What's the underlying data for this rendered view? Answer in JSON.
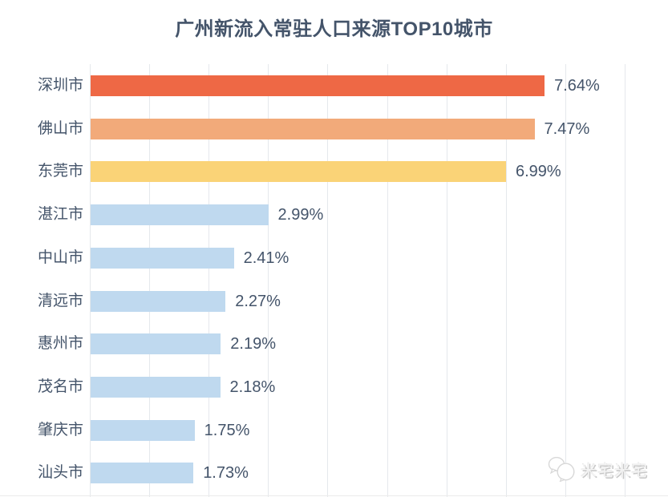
{
  "chart_data": {
    "type": "bar",
    "orientation": "horizontal",
    "title": "广州新流入常驻人口来源TOP10城市",
    "categories": [
      "深圳市",
      "佛山市",
      "东莞市",
      "湛江市",
      "中山市",
      "清远市",
      "惠州市",
      "茂名市",
      "肇庆市",
      "汕头市"
    ],
    "values": [
      7.64,
      7.47,
      6.99,
      2.99,
      2.41,
      2.27,
      2.19,
      2.18,
      1.75,
      1.73
    ],
    "value_labels": [
      "7.64%",
      "7.47%",
      "6.99%",
      "2.99%",
      "2.41%",
      "2.27%",
      "2.19%",
      "2.18%",
      "1.75%",
      "1.73%"
    ],
    "bar_colors": [
      "#ee6845",
      "#f2aa7a",
      "#fad377",
      "#bfd9ef",
      "#bfd9ef",
      "#bfd9ef",
      "#bfd9ef",
      "#bfd9ef",
      "#bfd9ef",
      "#bfd9ef"
    ],
    "xlim": [
      0,
      9.73
    ],
    "grid_tick_interval": 1,
    "grid": true,
    "legend": "none",
    "xlabel": "",
    "ylabel": ""
  },
  "colors": {
    "title_text": "#44546a",
    "label_text": "#44546a",
    "gridline": "#e5e8ec",
    "background": "#ffffff",
    "highlight_red": "#ee6845",
    "highlight_orange": "#f2aa7a",
    "highlight_yellow": "#fad377",
    "default_blue": "#bfd9ef"
  },
  "watermark": {
    "text": "米宅米宅",
    "icon": "wechat-chat-bubbles"
  }
}
